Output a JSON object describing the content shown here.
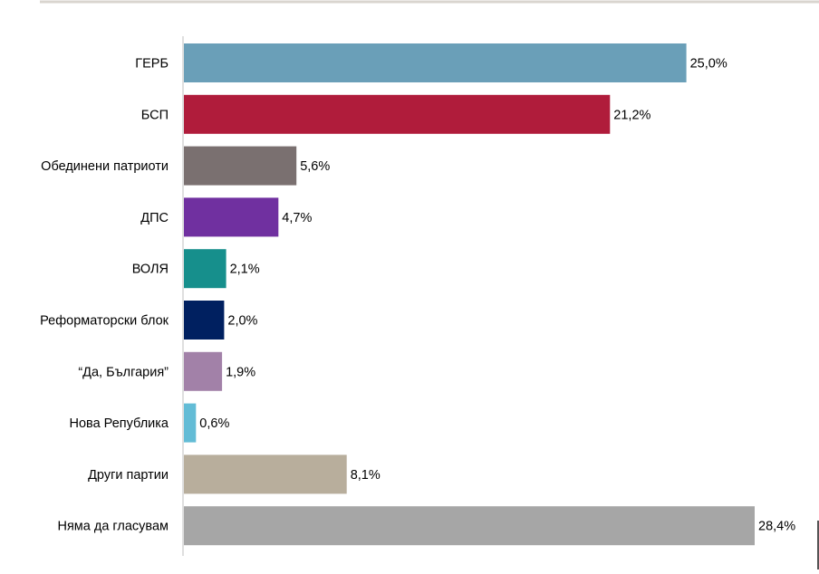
{
  "chart_data": {
    "type": "bar",
    "orientation": "horizontal",
    "categories": [
      "ГЕРБ",
      "БСП",
      "Обединени патриоти",
      "ДПС",
      "ВОЛЯ",
      "Реформаторски блок",
      "“Да, България”",
      "Нова Република",
      "Други партии",
      "Няма да гласувам"
    ],
    "values": [
      25.0,
      21.2,
      5.6,
      4.7,
      2.1,
      2.0,
      1.9,
      0.6,
      8.1,
      28.4
    ],
    "value_labels": [
      "25,0%",
      "21,2%",
      "5,6%",
      "4,7%",
      "2,1%",
      "2,0%",
      "1,9%",
      "0,6%",
      "8,1%",
      "28,4%"
    ],
    "colors": [
      "#6a9fb8",
      "#b01c3b",
      "#7a7070",
      "#7030a0",
      "#168f8c",
      "#002060",
      "#a281a8",
      "#63bcd6",
      "#b8ae9c",
      "#a6a6a6"
    ],
    "title": "",
    "xlabel": "",
    "ylabel": "",
    "xlim": [
      0,
      28.4
    ],
    "grid": false,
    "legend": "none"
  },
  "page": {
    "top_rule_color": "#d9d5cf",
    "axis_color": "#bfbfbf"
  }
}
